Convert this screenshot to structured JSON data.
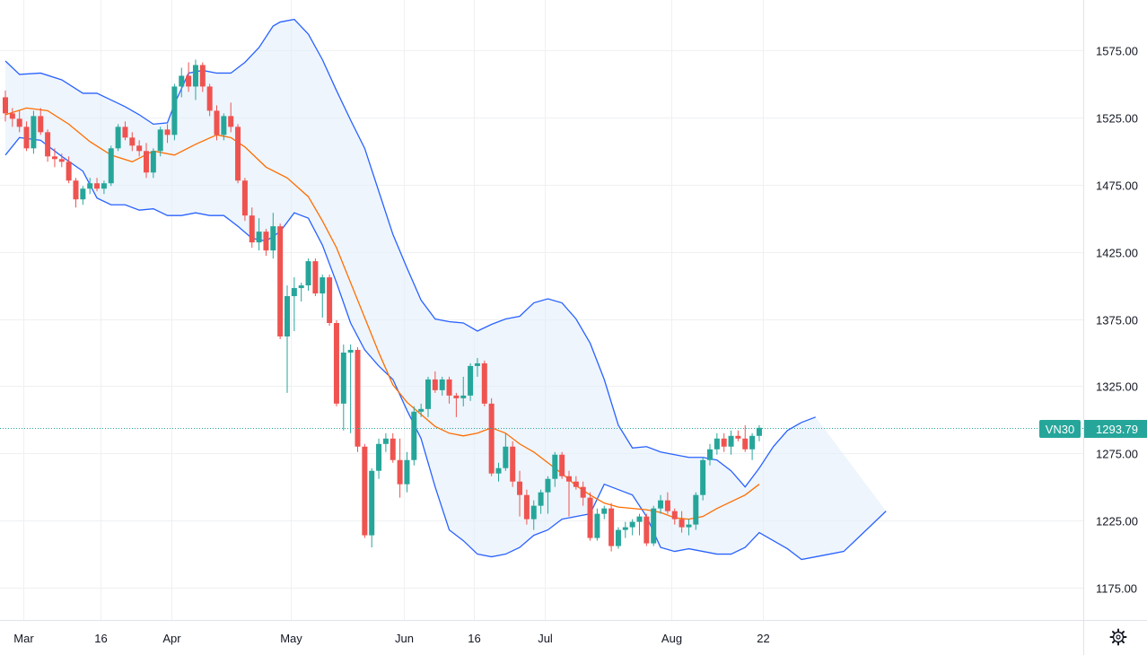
{
  "chart_data": {
    "type": "candlestick",
    "symbol": "VN30",
    "last_price": "1293.79",
    "ylim": [
      1150,
      1610
    ],
    "y_ticks": [
      "1175.00",
      "1225.00",
      "1275.00",
      "1325.00",
      "1375.00",
      "1425.00",
      "1475.00",
      "1525.00",
      "1575.00"
    ],
    "x_ticks": [
      {
        "label": "Mar",
        "idx": 0
      },
      {
        "label": "16",
        "idx": 11
      },
      {
        "label": "Apr",
        "idx": 21
      },
      {
        "label": "May",
        "idx": 38
      },
      {
        "label": "Jun",
        "idx": 54
      },
      {
        "label": "16",
        "idx": 64
      },
      {
        "label": "Jul",
        "idx": 74
      },
      {
        "label": "Aug",
        "idx": 92
      },
      {
        "label": "22",
        "idx": 105
      }
    ],
    "colors": {
      "up": "#26a69a",
      "down": "#ef5350",
      "band": "#2962ff",
      "band_fill": "#e3effa",
      "ma": "#ff6d00",
      "last_line": "#26a69a"
    },
    "candles": [
      [
        1540,
        1545,
        1522,
        1528
      ],
      [
        1528,
        1532,
        1518,
        1524
      ],
      [
        1524,
        1530,
        1514,
        1518
      ],
      [
        1518,
        1522,
        1500,
        1502
      ],
      [
        1502,
        1530,
        1498,
        1526
      ],
      [
        1526,
        1532,
        1512,
        1514
      ],
      [
        1514,
        1516,
        1492,
        1496
      ],
      [
        1496,
        1502,
        1488,
        1494
      ],
      [
        1494,
        1498,
        1488,
        1492
      ],
      [
        1492,
        1496,
        1476,
        1478
      ],
      [
        1478,
        1480,
        1458,
        1464
      ],
      [
        1464,
        1474,
        1460,
        1472
      ],
      [
        1472,
        1480,
        1468,
        1476
      ],
      [
        1476,
        1480,
        1470,
        1472
      ],
      [
        1472,
        1478,
        1468,
        1476
      ],
      [
        1476,
        1504,
        1474,
        1502
      ],
      [
        1502,
        1520,
        1500,
        1518
      ],
      [
        1518,
        1522,
        1508,
        1510
      ],
      [
        1510,
        1514,
        1500,
        1504
      ],
      [
        1504,
        1508,
        1496,
        1500
      ],
      [
        1500,
        1506,
        1480,
        1484
      ],
      [
        1484,
        1502,
        1480,
        1500
      ],
      [
        1500,
        1518,
        1496,
        1516
      ],
      [
        1516,
        1520,
        1506,
        1512
      ],
      [
        1512,
        1550,
        1508,
        1548
      ],
      [
        1548,
        1562,
        1540,
        1556
      ],
      [
        1556,
        1566,
        1544,
        1548
      ],
      [
        1548,
        1568,
        1538,
        1564
      ],
      [
        1564,
        1566,
        1544,
        1548
      ],
      [
        1548,
        1550,
        1526,
        1530
      ],
      [
        1530,
        1534,
        1508,
        1512
      ],
      [
        1512,
        1528,
        1508,
        1526
      ],
      [
        1526,
        1536,
        1514,
        1518
      ],
      [
        1518,
        1520,
        1476,
        1478
      ],
      [
        1478,
        1480,
        1448,
        1452
      ],
      [
        1452,
        1458,
        1428,
        1432
      ],
      [
        1432,
        1450,
        1426,
        1440
      ],
      [
        1440,
        1442,
        1422,
        1426
      ],
      [
        1426,
        1454,
        1420,
        1444
      ],
      [
        1444,
        1446,
        1360,
        1362
      ],
      [
        1362,
        1400,
        1320,
        1392
      ],
      [
        1392,
        1406,
        1366,
        1398
      ],
      [
        1398,
        1402,
        1388,
        1400
      ],
      [
        1400,
        1420,
        1396,
        1418
      ],
      [
        1418,
        1420,
        1392,
        1394
      ],
      [
        1394,
        1408,
        1376,
        1406
      ],
      [
        1406,
        1408,
        1370,
        1372
      ],
      [
        1372,
        1374,
        1310,
        1312
      ],
      [
        1312,
        1356,
        1292,
        1350
      ],
      [
        1350,
        1356,
        1290,
        1352
      ],
      [
        1352,
        1354,
        1276,
        1280
      ],
      [
        1280,
        1282,
        1212,
        1214
      ],
      [
        1214,
        1264,
        1205,
        1262
      ],
      [
        1262,
        1286,
        1256,
        1282
      ],
      [
        1282,
        1290,
        1276,
        1286
      ],
      [
        1286,
        1290,
        1268,
        1270
      ],
      [
        1270,
        1286,
        1242,
        1252
      ],
      [
        1252,
        1276,
        1246,
        1270
      ],
      [
        1270,
        1310,
        1266,
        1306
      ],
      [
        1306,
        1312,
        1302,
        1308
      ],
      [
        1308,
        1332,
        1302,
        1330
      ],
      [
        1330,
        1336,
        1320,
        1322
      ],
      [
        1322,
        1332,
        1318,
        1330
      ],
      [
        1330,
        1332,
        1312,
        1318
      ],
      [
        1318,
        1320,
        1302,
        1316
      ],
      [
        1316,
        1332,
        1310,
        1318
      ],
      [
        1318,
        1342,
        1314,
        1340
      ],
      [
        1340,
        1346,
        1332,
        1342
      ],
      [
        1342,
        1344,
        1310,
        1312
      ],
      [
        1312,
        1316,
        1258,
        1260
      ],
      [
        1260,
        1268,
        1254,
        1264
      ],
      [
        1264,
        1290,
        1262,
        1280
      ],
      [
        1280,
        1284,
        1250,
        1254
      ],
      [
        1254,
        1262,
        1228,
        1244
      ],
      [
        1244,
        1248,
        1222,
        1226
      ],
      [
        1226,
        1240,
        1218,
        1236
      ],
      [
        1236,
        1248,
        1230,
        1246
      ],
      [
        1246,
        1258,
        1230,
        1256
      ],
      [
        1256,
        1276,
        1250,
        1274
      ],
      [
        1274,
        1276,
        1256,
        1258
      ],
      [
        1258,
        1262,
        1228,
        1254
      ],
      [
        1254,
        1258,
        1248,
        1250
      ],
      [
        1250,
        1254,
        1236,
        1242
      ],
      [
        1242,
        1246,
        1210,
        1212
      ],
      [
        1212,
        1234,
        1210,
        1230
      ],
      [
        1230,
        1236,
        1226,
        1234
      ],
      [
        1234,
        1238,
        1202,
        1206
      ],
      [
        1206,
        1220,
        1204,
        1218
      ],
      [
        1218,
        1224,
        1212,
        1220
      ],
      [
        1220,
        1226,
        1214,
        1224
      ],
      [
        1224,
        1230,
        1214,
        1228
      ],
      [
        1228,
        1230,
        1206,
        1208
      ],
      [
        1208,
        1236,
        1206,
        1234
      ],
      [
        1234,
        1244,
        1230,
        1240
      ],
      [
        1240,
        1246,
        1230,
        1232
      ],
      [
        1232,
        1234,
        1222,
        1226
      ],
      [
        1226,
        1232,
        1216,
        1220
      ],
      [
        1220,
        1226,
        1214,
        1222
      ],
      [
        1222,
        1246,
        1218,
        1244
      ],
      [
        1244,
        1272,
        1240,
        1270
      ],
      [
        1270,
        1282,
        1266,
        1278
      ],
      [
        1278,
        1290,
        1274,
        1286
      ],
      [
        1286,
        1290,
        1276,
        1280
      ],
      [
        1280,
        1292,
        1274,
        1288
      ],
      [
        1288,
        1292,
        1284,
        1286
      ],
      [
        1286,
        1296,
        1276,
        1278
      ],
      [
        1278,
        1290,
        1270,
        1288
      ],
      [
        1288,
        1296,
        1284,
        1294
      ]
    ],
    "ma20": [
      [
        0,
        1527
      ],
      [
        3,
        1532
      ],
      [
        6,
        1530
      ],
      [
        9,
        1520
      ],
      [
        12,
        1507
      ],
      [
        15,
        1497
      ],
      [
        18,
        1492
      ],
      [
        21,
        1500
      ],
      [
        24,
        1497
      ],
      [
        27,
        1505
      ],
      [
        30,
        1512
      ],
      [
        32,
        1510
      ],
      [
        34,
        1503
      ],
      [
        37,
        1488
      ],
      [
        40,
        1480
      ],
      [
        43,
        1466
      ],
      [
        45,
        1448
      ],
      [
        47,
        1428
      ],
      [
        49,
        1402
      ],
      [
        51,
        1376
      ],
      [
        53,
        1350
      ],
      [
        55,
        1326
      ],
      [
        57,
        1313
      ],
      [
        59,
        1304
      ],
      [
        61,
        1295
      ],
      [
        63,
        1290
      ],
      [
        65,
        1288
      ],
      [
        67,
        1290
      ],
      [
        69,
        1294
      ],
      [
        71,
        1290
      ],
      [
        73,
        1282
      ],
      [
        75,
        1276
      ],
      [
        77,
        1268
      ],
      [
        79,
        1260
      ],
      [
        81,
        1251
      ],
      [
        83,
        1244
      ],
      [
        85,
        1238
      ],
      [
        87,
        1235
      ],
      [
        89,
        1234
      ],
      [
        91,
        1233
      ],
      [
        93,
        1231
      ],
      [
        95,
        1227
      ],
      [
        97,
        1226
      ],
      [
        99,
        1228
      ],
      [
        101,
        1234
      ],
      [
        103,
        1239
      ],
      [
        105,
        1244
      ],
      [
        107,
        1252
      ]
    ],
    "bb_upper": [
      [
        0,
        1567
      ],
      [
        2,
        1557
      ],
      [
        5,
        1558
      ],
      [
        8,
        1553
      ],
      [
        11,
        1543
      ],
      [
        13,
        1543
      ],
      [
        15,
        1538
      ],
      [
        17,
        1533
      ],
      [
        19,
        1527
      ],
      [
        21,
        1520
      ],
      [
        23,
        1521
      ],
      [
        24,
        1535
      ],
      [
        26,
        1558
      ],
      [
        28,
        1560
      ],
      [
        30,
        1558
      ],
      [
        32,
        1558
      ],
      [
        34,
        1566
      ],
      [
        36,
        1577
      ],
      [
        38,
        1593
      ],
      [
        39,
        1596
      ],
      [
        41,
        1598
      ],
      [
        43,
        1587
      ],
      [
        45,
        1568
      ],
      [
        47,
        1545
      ],
      [
        49,
        1523
      ],
      [
        51,
        1502
      ],
      [
        53,
        1470
      ],
      [
        55,
        1438
      ],
      [
        57,
        1413
      ],
      [
        59,
        1389
      ],
      [
        61,
        1375
      ],
      [
        63,
        1373
      ],
      [
        65,
        1372
      ],
      [
        67,
        1366
      ],
      [
        69,
        1371
      ],
      [
        71,
        1375
      ],
      [
        73,
        1377
      ],
      [
        75,
        1387
      ],
      [
        77,
        1390
      ],
      [
        79,
        1387
      ],
      [
        81,
        1375
      ],
      [
        83,
        1357
      ],
      [
        85,
        1330
      ],
      [
        87,
        1296
      ],
      [
        89,
        1279
      ],
      [
        91,
        1280
      ],
      [
        93,
        1276
      ],
      [
        95,
        1274
      ],
      [
        97,
        1272
      ],
      [
        99,
        1272
      ],
      [
        101,
        1270
      ],
      [
        103,
        1262
      ],
      [
        105,
        1250
      ],
      [
        107,
        1264
      ],
      [
        109,
        1280
      ],
      [
        111,
        1292
      ],
      [
        113,
        1298
      ],
      [
        115,
        1302
      ]
    ],
    "bb_lower": [
      [
        0,
        1497
      ],
      [
        2,
        1510
      ],
      [
        5,
        1508
      ],
      [
        8,
        1496
      ],
      [
        11,
        1485
      ],
      [
        13,
        1465
      ],
      [
        15,
        1460
      ],
      [
        17,
        1460
      ],
      [
        19,
        1456
      ],
      [
        21,
        1457
      ],
      [
        23,
        1452
      ],
      [
        25,
        1452
      ],
      [
        27,
        1454
      ],
      [
        29,
        1452
      ],
      [
        31,
        1452
      ],
      [
        33,
        1444
      ],
      [
        35,
        1435
      ],
      [
        37,
        1433
      ],
      [
        39,
        1440
      ],
      [
        41,
        1454
      ],
      [
        43,
        1450
      ],
      [
        45,
        1430
      ],
      [
        47,
        1402
      ],
      [
        49,
        1372
      ],
      [
        51,
        1352
      ],
      [
        53,
        1340
      ],
      [
        55,
        1330
      ],
      [
        57,
        1307
      ],
      [
        59,
        1286
      ],
      [
        61,
        1250
      ],
      [
        63,
        1218
      ],
      [
        65,
        1210
      ],
      [
        67,
        1200
      ],
      [
        69,
        1198
      ],
      [
        71,
        1200
      ],
      [
        73,
        1205
      ],
      [
        75,
        1214
      ],
      [
        77,
        1218
      ],
      [
        79,
        1226
      ],
      [
        81,
        1228
      ],
      [
        83,
        1230
      ],
      [
        85,
        1252
      ],
      [
        87,
        1248
      ],
      [
        89,
        1244
      ],
      [
        91,
        1228
      ],
      [
        93,
        1205
      ],
      [
        95,
        1202
      ],
      [
        97,
        1204
      ],
      [
        99,
        1202
      ],
      [
        101,
        1200
      ],
      [
        103,
        1200
      ],
      [
        105,
        1205
      ],
      [
        107,
        1216
      ],
      [
        109,
        1210
      ],
      [
        111,
        1204
      ],
      [
        113,
        1196
      ],
      [
        115,
        1198
      ],
      [
        117,
        1200
      ],
      [
        119,
        1202
      ],
      [
        121,
        1212
      ],
      [
        123,
        1222
      ],
      [
        125,
        1232
      ]
    ]
  }
}
